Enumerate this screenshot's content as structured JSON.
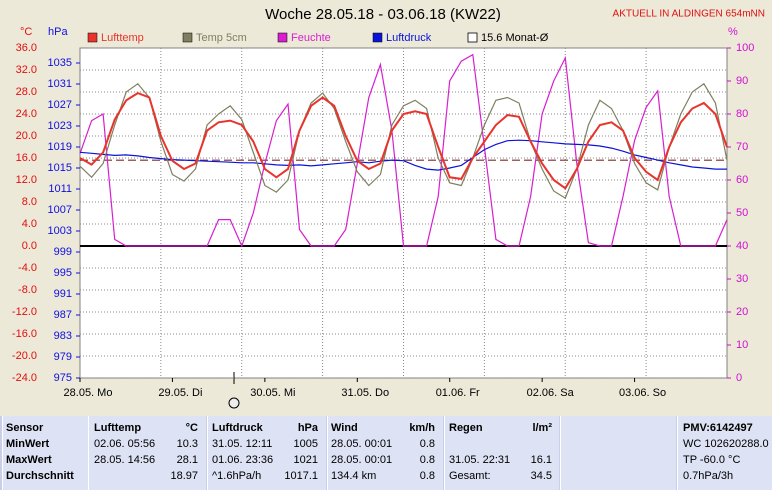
{
  "chart_data": {
    "type": "line",
    "title": "Woche 28.05.18 - 03.06.18 (KW22)",
    "annotation": "AKTUELL IN ALDINGEN 654mNN",
    "y_label": "°C",
    "y2_label": "hPa",
    "y3_label": "%",
    "x": [
      0,
      3,
      6,
      9,
      12,
      15,
      18,
      21,
      24,
      27,
      30,
      33,
      36,
      39,
      42,
      45,
      48,
      51,
      54,
      57,
      60,
      63,
      66,
      69,
      72,
      75,
      78,
      81,
      84,
      87,
      90,
      93,
      96,
      99,
      102,
      105,
      108,
      111,
      114,
      117,
      120,
      123,
      126,
      129,
      132,
      135,
      138,
      141,
      144,
      147,
      150,
      153,
      156,
      159,
      162,
      165,
      168
    ],
    "xlim": [
      0,
      168
    ],
    "xticks": [
      {
        "value": 0,
        "label": "28.05. Mo"
      },
      {
        "value": 24,
        "label": "29.05. Di"
      },
      {
        "value": 48,
        "label": "30.05. Mi"
      },
      {
        "value": 72,
        "label": "31.05. Do"
      },
      {
        "value": 96,
        "label": "01.06. Fr"
      },
      {
        "value": 120,
        "label": "02.06. Sa"
      },
      {
        "value": 144,
        "label": "03.06. So"
      }
    ],
    "ylim": [
      -24,
      36
    ],
    "yticks": [
      {
        "value": 36,
        "label": "36.0"
      },
      {
        "value": 32,
        "label": "32.0"
      },
      {
        "value": 28,
        "label": "28.0"
      },
      {
        "value": 24,
        "label": "24.0"
      },
      {
        "value": 20,
        "label": "20.0"
      },
      {
        "value": 16,
        "label": "16.0"
      },
      {
        "value": 12,
        "label": "12.0"
      },
      {
        "value": 8,
        "label": "8.0"
      },
      {
        "value": 4,
        "label": "4.0"
      },
      {
        "value": 0,
        "label": "0.0"
      },
      {
        "value": -4,
        "label": "-4.0"
      },
      {
        "value": -8,
        "label": "-8.0"
      },
      {
        "value": -12,
        "label": "-12.0"
      },
      {
        "value": -16,
        "label": "-16.0"
      },
      {
        "value": -20,
        "label": "-20.0"
      },
      {
        "value": -24,
        "label": "-24.0"
      }
    ],
    "y2lim": [
      975,
      1037.86
    ],
    "y2ticks": [
      1035,
      1031,
      1027,
      1023,
      1019,
      1015,
      1011,
      1007,
      1003,
      999,
      995,
      991,
      987,
      983,
      979,
      975
    ],
    "y3lim": [
      0,
      100
    ],
    "y3ticks": [
      100,
      90,
      80,
      70,
      60,
      50,
      40,
      30,
      20,
      10,
      0
    ],
    "grid": true,
    "series": [
      {
        "name": "Lufttemp",
        "color": "#e8342c",
        "axis": "y",
        "values": [
          16.0,
          14.8,
          17,
          23,
          26.5,
          27.8,
          27,
          20,
          15.5,
          14,
          15,
          21,
          22.5,
          22.8,
          22,
          19,
          14,
          12.5,
          14,
          21,
          25.5,
          27,
          25.5,
          20,
          15.5,
          14,
          15,
          21,
          24,
          24.5,
          24,
          18,
          12.5,
          12.2,
          16,
          19,
          22,
          23.8,
          23.5,
          19,
          15,
          12,
          10.5,
          14,
          19,
          22,
          22.5,
          21,
          16,
          13.5,
          12,
          18,
          22.5,
          25,
          26,
          24,
          18
        ]
      },
      {
        "name": "Temp 5cm",
        "color": "#7f7f5f",
        "axis": "y",
        "values": [
          14.5,
          12.5,
          15,
          22,
          28,
          29.5,
          27,
          19,
          13,
          11.8,
          14,
          22,
          24,
          25.5,
          23,
          17,
          11,
          9.8,
          12,
          21,
          26,
          27.8,
          25,
          19,
          13.5,
          11,
          13,
          22,
          25.5,
          26.5,
          25,
          16,
          11.5,
          11,
          16,
          22,
          26.5,
          27,
          26,
          19,
          14,
          10,
          8.7,
          14,
          22,
          26.5,
          25,
          21,
          15,
          11.5,
          10.2,
          18,
          24,
          28,
          29.5,
          26,
          15.6
        ]
      },
      {
        "name": "Feuchte",
        "color": "#d81ed0",
        "axis": "y3",
        "values": [
          68,
          78,
          80,
          42,
          40,
          40,
          40,
          40,
          40,
          40,
          40,
          40,
          48,
          48,
          40,
          50,
          65,
          78,
          83,
          45,
          40,
          40,
          40,
          45,
          65,
          85,
          95,
          75,
          40,
          40,
          40,
          55,
          90,
          96,
          98,
          70,
          42,
          40,
          40,
          55,
          80,
          90,
          97,
          65,
          41,
          40,
          40,
          55,
          72,
          82,
          87,
          55,
          40,
          40,
          40,
          40,
          48
        ]
      },
      {
        "name": "Luftdruck",
        "color": "#0a14d8",
        "axis": "y2",
        "values": [
          1018,
          1017.8,
          1017.6,
          1017.4,
          1017.5,
          1017.3,
          1017.0,
          1016.8,
          1016.6,
          1016.5,
          1016.4,
          1016.3,
          1016.2,
          1016.1,
          1016.0,
          1016.0,
          1015.8,
          1015.6,
          1015.5,
          1015.6,
          1015.4,
          1015.6,
          1015.8,
          1016.0,
          1016.2,
          1016.0,
          1016.3,
          1016.5,
          1016.4,
          1015.5,
          1014.8,
          1014.6,
          1015.0,
          1015.5,
          1017.0,
          1018.5,
          1019.5,
          1020.2,
          1020.3,
          1020.2,
          1020.0,
          1019.8,
          1019.6,
          1019.5,
          1019.4,
          1019.2,
          1018.8,
          1018.2,
          1017.5,
          1017.0,
          1016.5,
          1016.0,
          1015.6,
          1015.2,
          1015.0,
          1014.8,
          1014.8
        ]
      }
    ],
    "reference": {
      "name": "15.6 Monat-Ø",
      "value": 15.6,
      "color": "#802828"
    }
  },
  "table": {
    "headers": [
      "Sensor",
      "Lufttemp",
      "°C",
      "Luftdruck",
      "hPa",
      "Wind",
      "km/h",
      "Regen",
      "l/m²",
      "PMV:6142497"
    ],
    "rows": [
      [
        "MinWert",
        "02.06.  05:56",
        "10.3",
        "31.05.  12:11",
        "1005",
        "28.05.  00:01",
        "0.8",
        "",
        "",
        "WC 102620288.0"
      ],
      [
        "MaxWert",
        "28.05.  14:56",
        "28.1",
        "01.06.  23:36",
        "1021",
        "28.05.  00:01",
        "0.8",
        "31.05.  22:31",
        "16.1",
        "TP -60.0 °C"
      ],
      [
        "Durchschnitt",
        "",
        "18.97",
        "^1.6hPa/h",
        "1017.1",
        "134.4 km",
        "0.8",
        "Gesamt:",
        "34.5",
        "0.7hPa/3h"
      ]
    ]
  }
}
